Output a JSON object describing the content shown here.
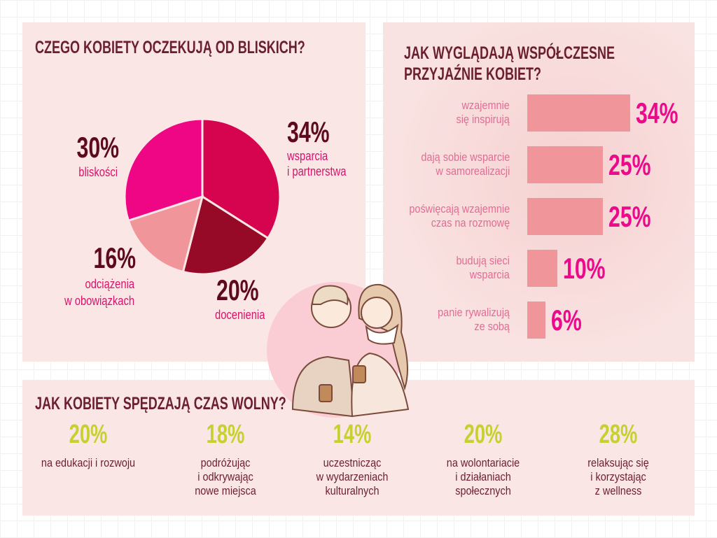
{
  "section1": {
    "title": "CZEGO KOBIETY OCZEKUJĄ OD BLISKICH?",
    "slices": [
      {
        "value": "34%",
        "label1": "wsparcia",
        "label2": "i partnerstwa"
      },
      {
        "value": "20%",
        "label1": "docenienia",
        "label2": ""
      },
      {
        "value": "16%",
        "label1": "odciążenia",
        "label2": "w obowiązkach"
      },
      {
        "value": "30%",
        "label1": "bliskości",
        "label2": ""
      }
    ]
  },
  "section2": {
    "title1": "JAK WYGLĄDAJĄ WSPÓŁCZESNE",
    "title2": "PRZYJAŹNIE KOBIET?",
    "bars": [
      {
        "l1": "wzajemnie",
        "l2": "się inspirują",
        "value": "34%"
      },
      {
        "l1": "dają sobie wsparcie",
        "l2": "w samorealizacji",
        "value": "25%"
      },
      {
        "l1": "poświęcają wzajemnie",
        "l2": "czas na rozmowę",
        "value": "25%"
      },
      {
        "l1": "budują sieci",
        "l2": "wsparcia",
        "value": "10%"
      },
      {
        "l1": "panie rywalizują",
        "l2": "ze sobą",
        "value": "6%"
      }
    ]
  },
  "section3": {
    "title": "JAK KOBIETY SPĘDZAJĄ CZAS WOLNY?",
    "items": [
      {
        "value": "20%",
        "l1": "na edukacji i rozwoju",
        "l2": "",
        "l3": ""
      },
      {
        "value": "18%",
        "l1": "podróżując",
        "l2": "i odkrywając",
        "l3": "nowe miejsca"
      },
      {
        "value": "14%",
        "l1": "uczestnicząc",
        "l2": "w wydarzeniach",
        "l3": "kulturalnych"
      },
      {
        "value": "20%",
        "l1": "na wolontariacie",
        "l2": "i działaniach",
        "l3": "społecznych"
      },
      {
        "value": "28%",
        "l1": "relaksując się",
        "l2": "i korzystając",
        "l3": "z wellness"
      }
    ]
  },
  "chart_data": [
    {
      "type": "pie",
      "title": "CZEGO KOBIETY OCZEKUJĄ OD BLISKICH?",
      "categories": [
        "wsparcia i partnerstwa",
        "docenienia",
        "odciążenia w obowiązkach",
        "bliskości"
      ],
      "values": [
        34,
        20,
        16,
        30
      ],
      "colors": [
        "#d6044f",
        "#960a27",
        "#f0969a",
        "#ef0685"
      ]
    },
    {
      "type": "bar",
      "title": "JAK WYGLĄDAJĄ WSPÓŁCZESNE PRZYJAŹNIE KOBIET?",
      "categories": [
        "wzajemnie się inspirują",
        "dają sobie wsparcie w samorealizacji",
        "poświęcają wzajemnie czas na rozmowę",
        "budują sieci wsparcia",
        "panie rywalizują ze sobą"
      ],
      "values": [
        34,
        25,
        25,
        10,
        6
      ],
      "color": "#f0969a"
    },
    {
      "type": "table",
      "title": "JAK KOBIETY SPĘDZAJĄ CZAS WOLNY?",
      "categories": [
        "na edukacji i rozwoju",
        "podróżując i odkrywając nowe miejsca",
        "uczestnicząc w wydarzeniach kulturalnych",
        "na wolontariacie i działaniach społecznych",
        "relaksując się i korzystając z wellness"
      ],
      "values": [
        20,
        18,
        14,
        20,
        28
      ]
    }
  ]
}
